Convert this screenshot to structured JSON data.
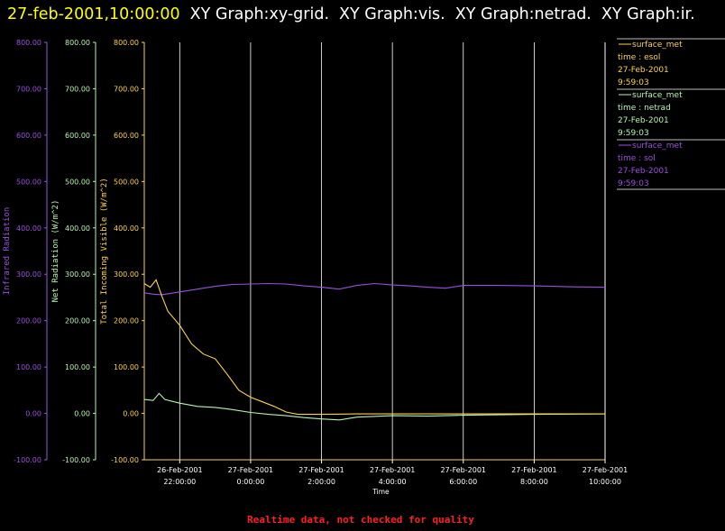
{
  "header": {
    "timestamp": "27-feb-2001,10:00:00",
    "graph_titles": [
      "XY Graph:xy-grid.",
      "XY Graph:vis.",
      "XY Graph:netrad.",
      "XY Graph:ir."
    ]
  },
  "footer": {
    "quality_note": "Realtime data, not checked for quality"
  },
  "colors": {
    "background": "#000000",
    "ir": "#9b4fe0",
    "netrad": "#b8f5b0",
    "vis": "#ffd24a",
    "grid": "#ffffff",
    "header_time": "#ffff00",
    "warning": "#ff2020"
  },
  "chart_data": {
    "type": "line",
    "x_unit": "hours",
    "x_label": "Time",
    "xlim": [
      "2001-02-26 21:00:00",
      "2001-02-27 10:00:00"
    ],
    "x_ticks": [
      {
        "date": "26-Feb-2001",
        "time": "22:00:00"
      },
      {
        "date": "27-Feb-2001",
        "time": "0:00:00"
      },
      {
        "date": "27-Feb-2001",
        "time": "2:00:00"
      },
      {
        "date": "27-Feb-2001",
        "time": "4:00:00"
      },
      {
        "date": "27-Feb-2001",
        "time": "6:00:00"
      },
      {
        "date": "27-Feb-2001",
        "time": "8:00:00"
      },
      {
        "date": "27-Feb-2001",
        "time": "10:00:00"
      }
    ],
    "ylim": [
      -100,
      800
    ],
    "y_ticks": [
      "800.00",
      "700.00",
      "600.00",
      "500.00",
      "400.00",
      "300.00",
      "200.00",
      "100.00",
      "0.00",
      "-100.00"
    ],
    "y_axes": [
      {
        "label": "Infrared Radiation",
        "series": "ir"
      },
      {
        "label": "Net Radiation (W/m^2)",
        "series": "netrad"
      },
      {
        "label": "Total Incoming Visible (W/m^2)",
        "series": "vis"
      }
    ],
    "grid": true,
    "legend": {
      "placement": "top-right",
      "entries": [
        {
          "series": "vis",
          "lines": [
            "surface_met",
            "time : esol",
            "27-Feb-2001",
            "9:59:03"
          ]
        },
        {
          "series": "netrad",
          "lines": [
            "surface_met",
            "time : netrad",
            "27-Feb-2001",
            "9:59:03"
          ]
        },
        {
          "series": "ir",
          "lines": [
            "surface_met",
            "time : sol",
            "27-Feb-2001",
            "9:59:03"
          ]
        }
      ]
    },
    "series": [
      {
        "id": "ir",
        "x": [
          "2001-02-26 21:00",
          "2001-02-26 21:15",
          "2001-02-26 21:30",
          "2001-02-26 22:00",
          "2001-02-26 22:30",
          "2001-02-26 23:00",
          "2001-02-26 23:30",
          "2001-02-27 00:00",
          "2001-02-27 00:30",
          "2001-02-27 01:00",
          "2001-02-27 01:30",
          "2001-02-27 02:00",
          "2001-02-27 02:30",
          "2001-02-27 03:00",
          "2001-02-27 03:30",
          "2001-02-27 04:00",
          "2001-02-27 04:30",
          "2001-02-27 05:00",
          "2001-02-27 05:30",
          "2001-02-27 06:00",
          "2001-02-27 07:00",
          "2001-02-27 08:00",
          "2001-02-27 09:00",
          "2001-02-27 10:00"
        ],
        "y": [
          260,
          257,
          256,
          262,
          268,
          274,
          278,
          279,
          280,
          279,
          275,
          272,
          268,
          276,
          280,
          277,
          275,
          272,
          270,
          276,
          276,
          275,
          273,
          272
        ]
      },
      {
        "id": "netrad",
        "x": [
          "2001-02-26 21:00",
          "2001-02-26 21:15",
          "2001-02-26 21:25",
          "2001-02-26 21:35",
          "2001-02-26 22:00",
          "2001-02-26 22:30",
          "2001-02-26 23:00",
          "2001-02-26 23:30",
          "2001-02-27 00:00",
          "2001-02-27 00:30",
          "2001-02-27 01:00",
          "2001-02-27 01:30",
          "2001-02-27 02:00",
          "2001-02-27 02:30",
          "2001-02-27 03:00",
          "2001-02-27 04:00",
          "2001-02-27 05:00",
          "2001-02-27 06:00",
          "2001-02-27 08:00",
          "2001-02-27 10:00"
        ],
        "y": [
          30,
          28,
          43,
          30,
          22,
          15,
          13,
          8,
          2,
          -2,
          -5,
          -9,
          -12,
          -14,
          -8,
          -5,
          -6,
          -4,
          -2,
          -1
        ]
      },
      {
        "id": "vis",
        "x": [
          "2001-02-26 21:00",
          "2001-02-26 21:10",
          "2001-02-26 21:20",
          "2001-02-26 21:30",
          "2001-02-26 21:40",
          "2001-02-26 22:00",
          "2001-02-26 22:20",
          "2001-02-26 22:40",
          "2001-02-26 23:00",
          "2001-02-26 23:20",
          "2001-02-26 23:40",
          "2001-02-27 00:00",
          "2001-02-27 00:20",
          "2001-02-27 00:40",
          "2001-02-27 01:00",
          "2001-02-27 01:20",
          "2001-02-27 02:00",
          "2001-02-27 03:00",
          "2001-02-27 04:00",
          "2001-02-27 06:00",
          "2001-02-27 08:00",
          "2001-02-27 10:00"
        ],
        "y": [
          280,
          272,
          288,
          252,
          220,
          190,
          150,
          128,
          118,
          85,
          50,
          35,
          25,
          15,
          3,
          -2,
          -2,
          -1,
          -1,
          -1,
          -1,
          -1
        ]
      }
    ]
  }
}
